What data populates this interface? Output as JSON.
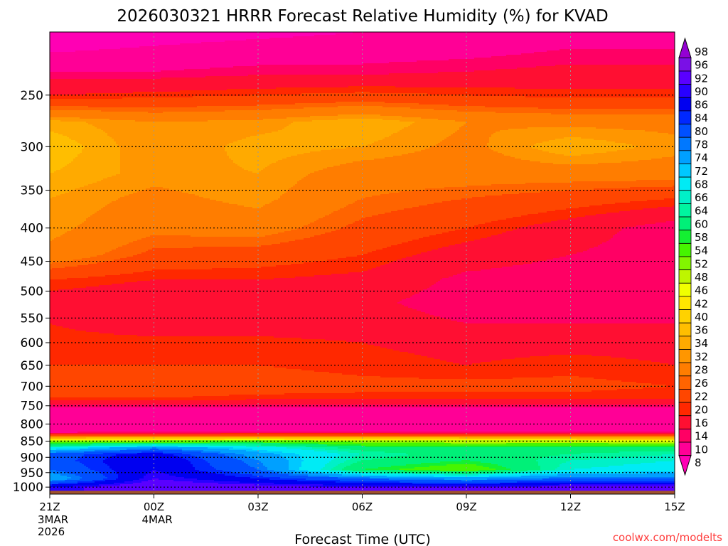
{
  "chart_data": {
    "type": "heatmap",
    "title": "2026030321 HRRR Forecast Relative Humidity (%) for KVAD",
    "xlabel": "Forecast Time (UTC)",
    "ylabel": "",
    "watermark": "coolwx.com/modelts",
    "x_ticks": [
      {
        "label": "21Z",
        "sub": [
          "3MAR",
          "2026"
        ],
        "hour": 0
      },
      {
        "label": "00Z",
        "sub": [
          "4MAR"
        ],
        "hour": 3
      },
      {
        "label": "03Z",
        "sub": [],
        "hour": 6
      },
      {
        "label": "06Z",
        "sub": [],
        "hour": 9
      },
      {
        "label": "09Z",
        "sub": [],
        "hour": 12
      },
      {
        "label": "12Z",
        "sub": [],
        "hour": 15
      },
      {
        "label": "15Z",
        "sub": [],
        "hour": 18
      }
    ],
    "xlim_hours": [
      0,
      18
    ],
    "y_ticks": [
      "250",
      "300",
      "350",
      "400",
      "450",
      "500",
      "550",
      "600",
      "650",
      "700",
      "750",
      "800",
      "850",
      "900",
      "950",
      "1000"
    ],
    "y_tick_values": [
      250,
      300,
      350,
      400,
      450,
      500,
      550,
      600,
      650,
      700,
      750,
      800,
      850,
      900,
      950,
      1000
    ],
    "ylim_hpa": [
      200,
      1025
    ],
    "yscale": "log-pressure",
    "surface_pressure_hpa": 1013,
    "colorbar": {
      "labels": [
        "98",
        "96",
        "92",
        "90",
        "86",
        "84",
        "80",
        "78",
        "74",
        "72",
        "68",
        "66",
        "64",
        "60",
        "58",
        "54",
        "52",
        "48",
        "46",
        "42",
        "40",
        "36",
        "34",
        "32",
        "28",
        "26",
        "22",
        "20",
        "16",
        "14",
        "10",
        "8"
      ],
      "colors": [
        "#9400d3",
        "#7a10e6",
        "#5a00ff",
        "#2800ff",
        "#0000f0",
        "#0028ff",
        "#0050ff",
        "#0078ff",
        "#00a0ff",
        "#00c8ff",
        "#00ebf5",
        "#00f0c8",
        "#00f5a0",
        "#00f078",
        "#14f032",
        "#46f500",
        "#82f500",
        "#bef500",
        "#f0ff00",
        "#ffe600",
        "#ffd200",
        "#ffbe00",
        "#ffaa00",
        "#ff9600",
        "#ff7d00",
        "#ff6400",
        "#ff4600",
        "#ff2800",
        "#ff0f32",
        "#ff0064",
        "#ff0096",
        "#ff00b4"
      ]
    },
    "profile_levels_hpa": [
      200,
      230,
      250,
      275,
      300,
      330,
      360,
      400,
      440,
      480,
      520,
      560,
      600,
      650,
      700,
      730,
      760,
      790,
      820,
      835,
      850,
      870,
      890,
      910,
      940,
      970,
      1000
    ],
    "profiles": [
      {
        "hour": 0,
        "rh": [
          6,
          14,
          20,
          35,
          38,
          36,
          34,
          33,
          31,
          22,
          18,
          20,
          21,
          22,
          25,
          22,
          12,
          10,
          10,
          26,
          52,
          68,
          82,
          82,
          80,
          74,
          90
        ]
      },
      {
        "hour": 3,
        "rh": [
          8,
          14,
          21,
          32,
          32,
          33,
          31,
          29,
          25,
          20,
          16,
          18,
          21,
          22,
          25,
          22,
          12,
          10,
          10,
          28,
          54,
          78,
          88,
          90,
          90,
          92,
          96
        ]
      },
      {
        "hour": 6,
        "rh": [
          9,
          15,
          22,
          33,
          35,
          34,
          33,
          30,
          24,
          20,
          17,
          18,
          21,
          22,
          24,
          21,
          12,
          10,
          10,
          30,
          56,
          70,
          76,
          78,
          80,
          86,
          94
        ]
      },
      {
        "hour": 9,
        "rh": [
          10,
          15,
          23,
          36,
          34,
          30,
          28,
          25,
          22,
          19,
          17,
          18,
          20,
          21,
          23,
          21,
          12,
          10,
          10,
          30,
          52,
          62,
          66,
          64,
          60,
          80,
          92
        ]
      },
      {
        "hour": 12,
        "rh": [
          10,
          16,
          22,
          32,
          31,
          30,
          26,
          22,
          18,
          15,
          14,
          16,
          19,
          20,
          23,
          21,
          12,
          10,
          10,
          28,
          50,
          60,
          62,
          60,
          54,
          76,
          92
        ]
      },
      {
        "hour": 15,
        "rh": [
          12,
          17,
          21,
          31,
          36,
          30,
          24,
          18,
          16,
          14,
          14,
          16,
          19,
          21,
          23,
          21,
          12,
          10,
          10,
          28,
          50,
          62,
          64,
          66,
          68,
          80,
          94
        ]
      },
      {
        "hour": 18,
        "rh": [
          12,
          17,
          21,
          31,
          33,
          30,
          22,
          14,
          14,
          14,
          15,
          16,
          19,
          20,
          22,
          20,
          12,
          10,
          10,
          28,
          48,
          62,
          66,
          68,
          70,
          80,
          94
        ]
      }
    ]
  }
}
